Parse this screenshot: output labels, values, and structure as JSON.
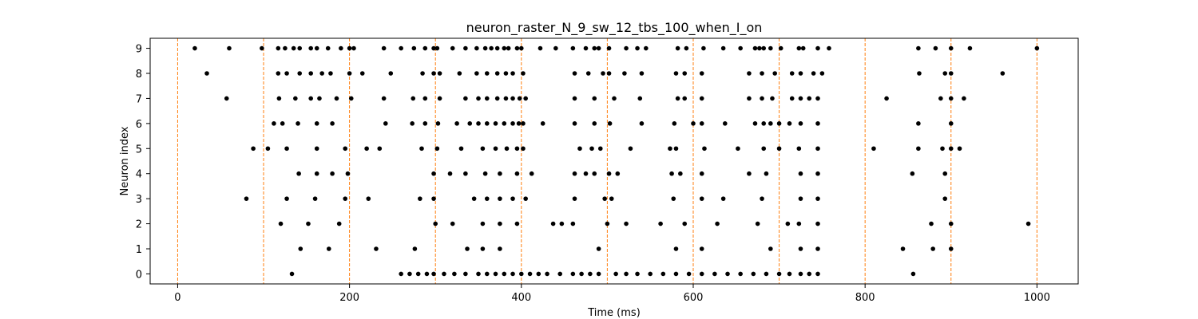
{
  "chart_data": {
    "type": "scatter",
    "title": "neuron_raster_N_9_sw_12_tbs_100_when_I_on",
    "xlabel": "Time (ms)",
    "ylabel": "Neuron index",
    "xlim": [
      -32,
      1048
    ],
    "ylim": [
      -0.4,
      9.4
    ],
    "x_ticks": [
      0,
      200,
      400,
      600,
      800,
      1000
    ],
    "y_ticks": [
      0,
      1,
      2,
      3,
      4,
      5,
      6,
      7,
      8,
      9
    ],
    "grid": false,
    "marker_color": "#000000",
    "vlines": {
      "x": [
        0,
        100,
        200,
        300,
        400,
        500,
        600,
        700,
        800,
        900,
        1000
      ],
      "color": "#ff7f0e",
      "style": "dashed"
    },
    "series": [
      {
        "neuron": 0,
        "x": [
          133,
          260,
          270,
          280,
          290,
          298,
          310,
          322,
          335,
          350,
          360,
          370,
          380,
          390,
          400,
          410,
          420,
          430,
          445,
          460,
          470,
          480,
          490,
          510,
          522,
          535,
          550,
          565,
          580,
          595,
          610,
          625,
          640,
          655,
          670,
          685,
          700,
          712,
          725,
          735,
          745,
          856
        ]
      },
      {
        "neuron": 1,
        "x": [
          143,
          176,
          231,
          276,
          337,
          355,
          375,
          490,
          580,
          610,
          690,
          725,
          745,
          844,
          879,
          900
        ]
      },
      {
        "neuron": 2,
        "x": [
          120,
          152,
          188,
          300,
          320,
          355,
          375,
          395,
          437,
          447,
          460,
          500,
          522,
          562,
          590,
          628,
          675,
          710,
          723,
          745,
          877,
          900,
          990
        ]
      },
      {
        "neuron": 3,
        "x": [
          80,
          127,
          160,
          195,
          222,
          282,
          298,
          345,
          360,
          375,
          390,
          405,
          462,
          497,
          505,
          577,
          610,
          635,
          680,
          725,
          745,
          893
        ]
      },
      {
        "neuron": 4,
        "x": [
          141,
          162,
          180,
          198,
          298,
          317,
          335,
          358,
          375,
          395,
          412,
          462,
          475,
          485,
          502,
          512,
          575,
          585,
          610,
          665,
          685,
          725,
          745,
          855,
          893
        ]
      },
      {
        "neuron": 5,
        "x": [
          88,
          105,
          127,
          162,
          195,
          220,
          235,
          284,
          302,
          330,
          355,
          370,
          383,
          395,
          402,
          468,
          482,
          492,
          527,
          573,
          580,
          613,
          652,
          682,
          700,
          723,
          745,
          810,
          862,
          890,
          900,
          910
        ]
      },
      {
        "neuron": 6,
        "x": [
          112,
          122,
          140,
          162,
          180,
          242,
          273,
          288,
          303,
          325,
          340,
          350,
          360,
          370,
          380,
          390,
          397,
          402,
          425,
          462,
          485,
          503,
          540,
          578,
          600,
          610,
          637,
          672,
          682,
          690,
          700,
          712,
          725,
          745,
          862,
          900
        ]
      },
      {
        "neuron": 7,
        "x": [
          57,
          118,
          137,
          155,
          165,
          185,
          202,
          240,
          274,
          288,
          305,
          335,
          350,
          360,
          372,
          382,
          390,
          398,
          405,
          462,
          485,
          508,
          538,
          582,
          590,
          610,
          665,
          680,
          692,
          715,
          725,
          735,
          745,
          825,
          888,
          900,
          915
        ]
      },
      {
        "neuron": 8,
        "x": [
          34,
          117,
          127,
          142,
          155,
          168,
          178,
          200,
          215,
          248,
          285,
          298,
          305,
          328,
          348,
          360,
          372,
          382,
          390,
          402,
          462,
          478,
          495,
          502,
          520,
          540,
          580,
          590,
          610,
          665,
          680,
          695,
          715,
          725,
          740,
          750,
          863,
          893,
          900,
          960
        ]
      },
      {
        "neuron": 9,
        "x": [
          20,
          60,
          98,
          117,
          125,
          135,
          142,
          155,
          162,
          175,
          190,
          200,
          205,
          240,
          260,
          275,
          288,
          298,
          302,
          320,
          335,
          348,
          358,
          365,
          372,
          380,
          385,
          395,
          400,
          422,
          440,
          460,
          475,
          485,
          490,
          502,
          522,
          535,
          545,
          582,
          592,
          612,
          635,
          655,
          672,
          677,
          682,
          690,
          702,
          723,
          728,
          745,
          758,
          862,
          882,
          900,
          922,
          1000
        ]
      }
    ]
  }
}
